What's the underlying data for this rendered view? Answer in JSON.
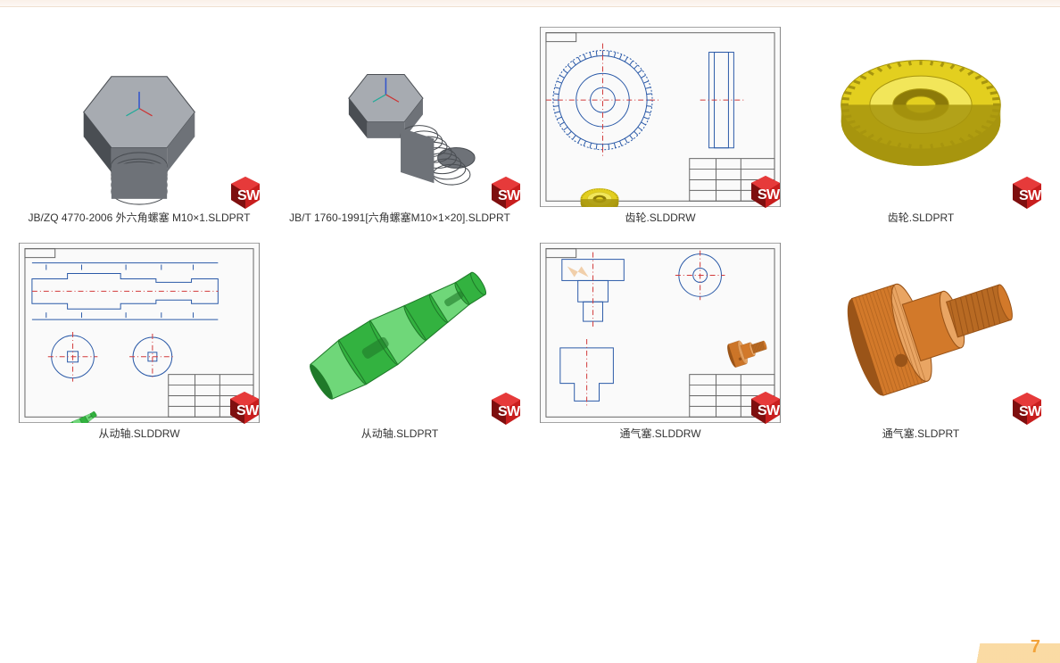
{
  "page_number": "7",
  "sw_badge": {
    "bg": "#c81e1e",
    "shadow": "#7e0f0f",
    "text_color": "#ffffff",
    "s": "S",
    "w": "W"
  },
  "files": [
    {
      "type": "part3d",
      "caption": "JB/ZQ 4770-2006 外六角螺塞 M10×1.SLDPRT",
      "render": "hexbolt",
      "colors": {
        "body": "#6e7278",
        "dark": "#4a4e53",
        "light": "#a7abb1"
      }
    },
    {
      "type": "part3d",
      "caption": "JB/T 1760-1991[六角螺塞M10×1×20].SLDPRT",
      "render": "hexbolt_long",
      "colors": {
        "body": "#6e7278",
        "dark": "#4a4e53",
        "light": "#a7abb1"
      }
    },
    {
      "type": "drawing",
      "caption": "齿轮.SLDDRW",
      "render": "gear_drw",
      "colors": {
        "line": "#2b5aa8",
        "center": "#d23a3a",
        "bg": "#fafafa",
        "block": "#666",
        "paper": "#666"
      }
    },
    {
      "type": "part3d",
      "caption": "齿轮.SLDPRT",
      "render": "gear3d",
      "colors": {
        "body": "#e3cf1f",
        "dark": "#a7950e",
        "light": "#f2e65a",
        "hub": "#8c7a09"
      }
    },
    {
      "type": "drawing",
      "caption": "从动轴.SLDDRW",
      "render": "shaft_drw",
      "colors": {
        "line": "#2b5aa8",
        "center": "#d23a3a",
        "bg": "#fafafa",
        "block": "#666",
        "iso": "#32b23f"
      }
    },
    {
      "type": "part3d",
      "caption": "从动轴.SLDPRT",
      "render": "shaft3d",
      "colors": {
        "body": "#33b240",
        "dark": "#1f7a29",
        "light": "#6fd779"
      }
    },
    {
      "type": "drawing",
      "caption": "通气塞.SLDDRW",
      "render": "vent_drw",
      "colors": {
        "line": "#2b5aa8",
        "center": "#d23a3a",
        "bg": "#fafafa",
        "block": "#666",
        "iso": "#d2792a"
      }
    },
    {
      "type": "part3d",
      "caption": "通气塞.SLDPRT",
      "render": "vent3d",
      "colors": {
        "body": "#d2792a",
        "dark": "#9a5418",
        "light": "#e9a563",
        "thread": "#b86a23"
      }
    }
  ]
}
